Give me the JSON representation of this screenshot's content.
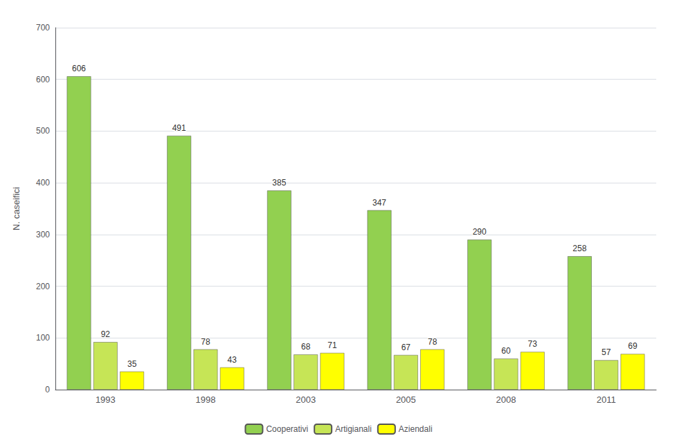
{
  "chart_data": {
    "type": "bar",
    "categories": [
      "1993",
      "1998",
      "2003",
      "2005",
      "2008",
      "2011"
    ],
    "series": [
      {
        "name": "Cooperativi",
        "color": "#92D050",
        "values": [
          606,
          491,
          385,
          347,
          290,
          258
        ]
      },
      {
        "name": "Artigianali",
        "color": "#C6E556",
        "values": [
          92,
          78,
          68,
          67,
          60,
          57
        ]
      },
      {
        "name": "Aziendali",
        "color": "#FFFF00",
        "values": [
          35,
          43,
          71,
          78,
          73,
          69
        ]
      }
    ],
    "ylabel": "N. caseifici",
    "ylim": [
      0,
      700
    ],
    "yticks": [
      0,
      100,
      200,
      300,
      400,
      500,
      600,
      700
    ],
    "grid": true,
    "legend": "bottom",
    "data_labels": true
  }
}
